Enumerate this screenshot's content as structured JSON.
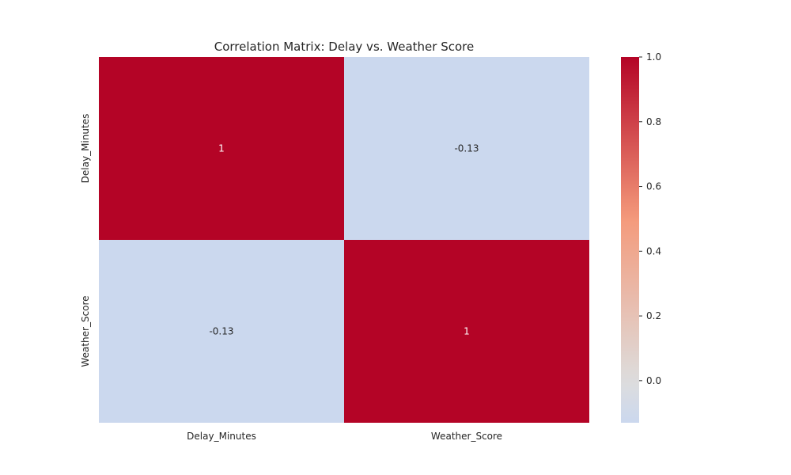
{
  "chart_data": {
    "type": "heatmap",
    "title": "Correlation Matrix: Delay vs. Weather Score",
    "xlabel": "",
    "ylabel": "",
    "x_categories": [
      "Delay_Minutes",
      "Weather_Score"
    ],
    "y_categories": [
      "Delay_Minutes",
      "Weather_Score"
    ],
    "values": [
      [
        1,
        -0.13
      ],
      [
        -0.13,
        1
      ]
    ],
    "cell_labels": [
      [
        "1",
        "-0.13"
      ],
      [
        "-0.13",
        "1"
      ]
    ],
    "colorbar": {
      "range": [
        -0.13,
        1.0
      ],
      "ticks": [
        0.0,
        0.2,
        0.4,
        0.6,
        0.8,
        1.0
      ],
      "tick_labels": [
        "0.0",
        "0.2",
        "0.4",
        "0.6",
        "0.8",
        "1.0"
      ],
      "colormap": "coolwarm",
      "low_color": "#cbd8ee",
      "high_color": "#b40426"
    },
    "grid": false,
    "legend": "colorbar-right"
  }
}
